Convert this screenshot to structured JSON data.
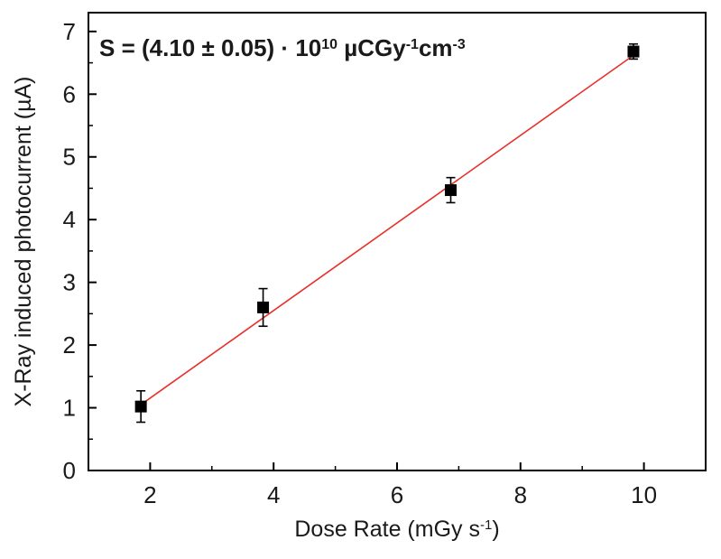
{
  "chart_data": {
    "type": "scatter",
    "xlabel": "Dose Rate (mGy s",
    "xlabel_sup": "-1",
    "xlabel_tail": ")",
    "ylabel": "X-Ray induced photocurrent (µA)",
    "xlim": [
      1,
      11
    ],
    "ylim": [
      0,
      7.3
    ],
    "x_ticks": [
      2,
      4,
      6,
      8,
      10
    ],
    "y_ticks": [
      0,
      1,
      2,
      3,
      4,
      5,
      6,
      7
    ],
    "grid": false,
    "annotation": {
      "prefix": "S = (4.10 ± 0.05) · 10",
      "exp1": "10",
      "mid": " µCGy",
      "exp2": "-1",
      "cm": "cm",
      "exp3": "-3"
    },
    "series": [
      {
        "points": [
          {
            "x": 1.85,
            "y": 1.02,
            "err": 0.25
          },
          {
            "x": 3.83,
            "y": 2.6,
            "err": 0.3
          },
          {
            "x": 6.87,
            "y": 4.47,
            "err": 0.2
          },
          {
            "x": 9.83,
            "y": 6.68,
            "err": 0.12
          }
        ],
        "color": "#000000",
        "marker": "square"
      }
    ],
    "fit_line": {
      "x": [
        1.85,
        9.83
      ],
      "y": [
        1.05,
        6.62
      ],
      "color": "#e8302a"
    }
  }
}
